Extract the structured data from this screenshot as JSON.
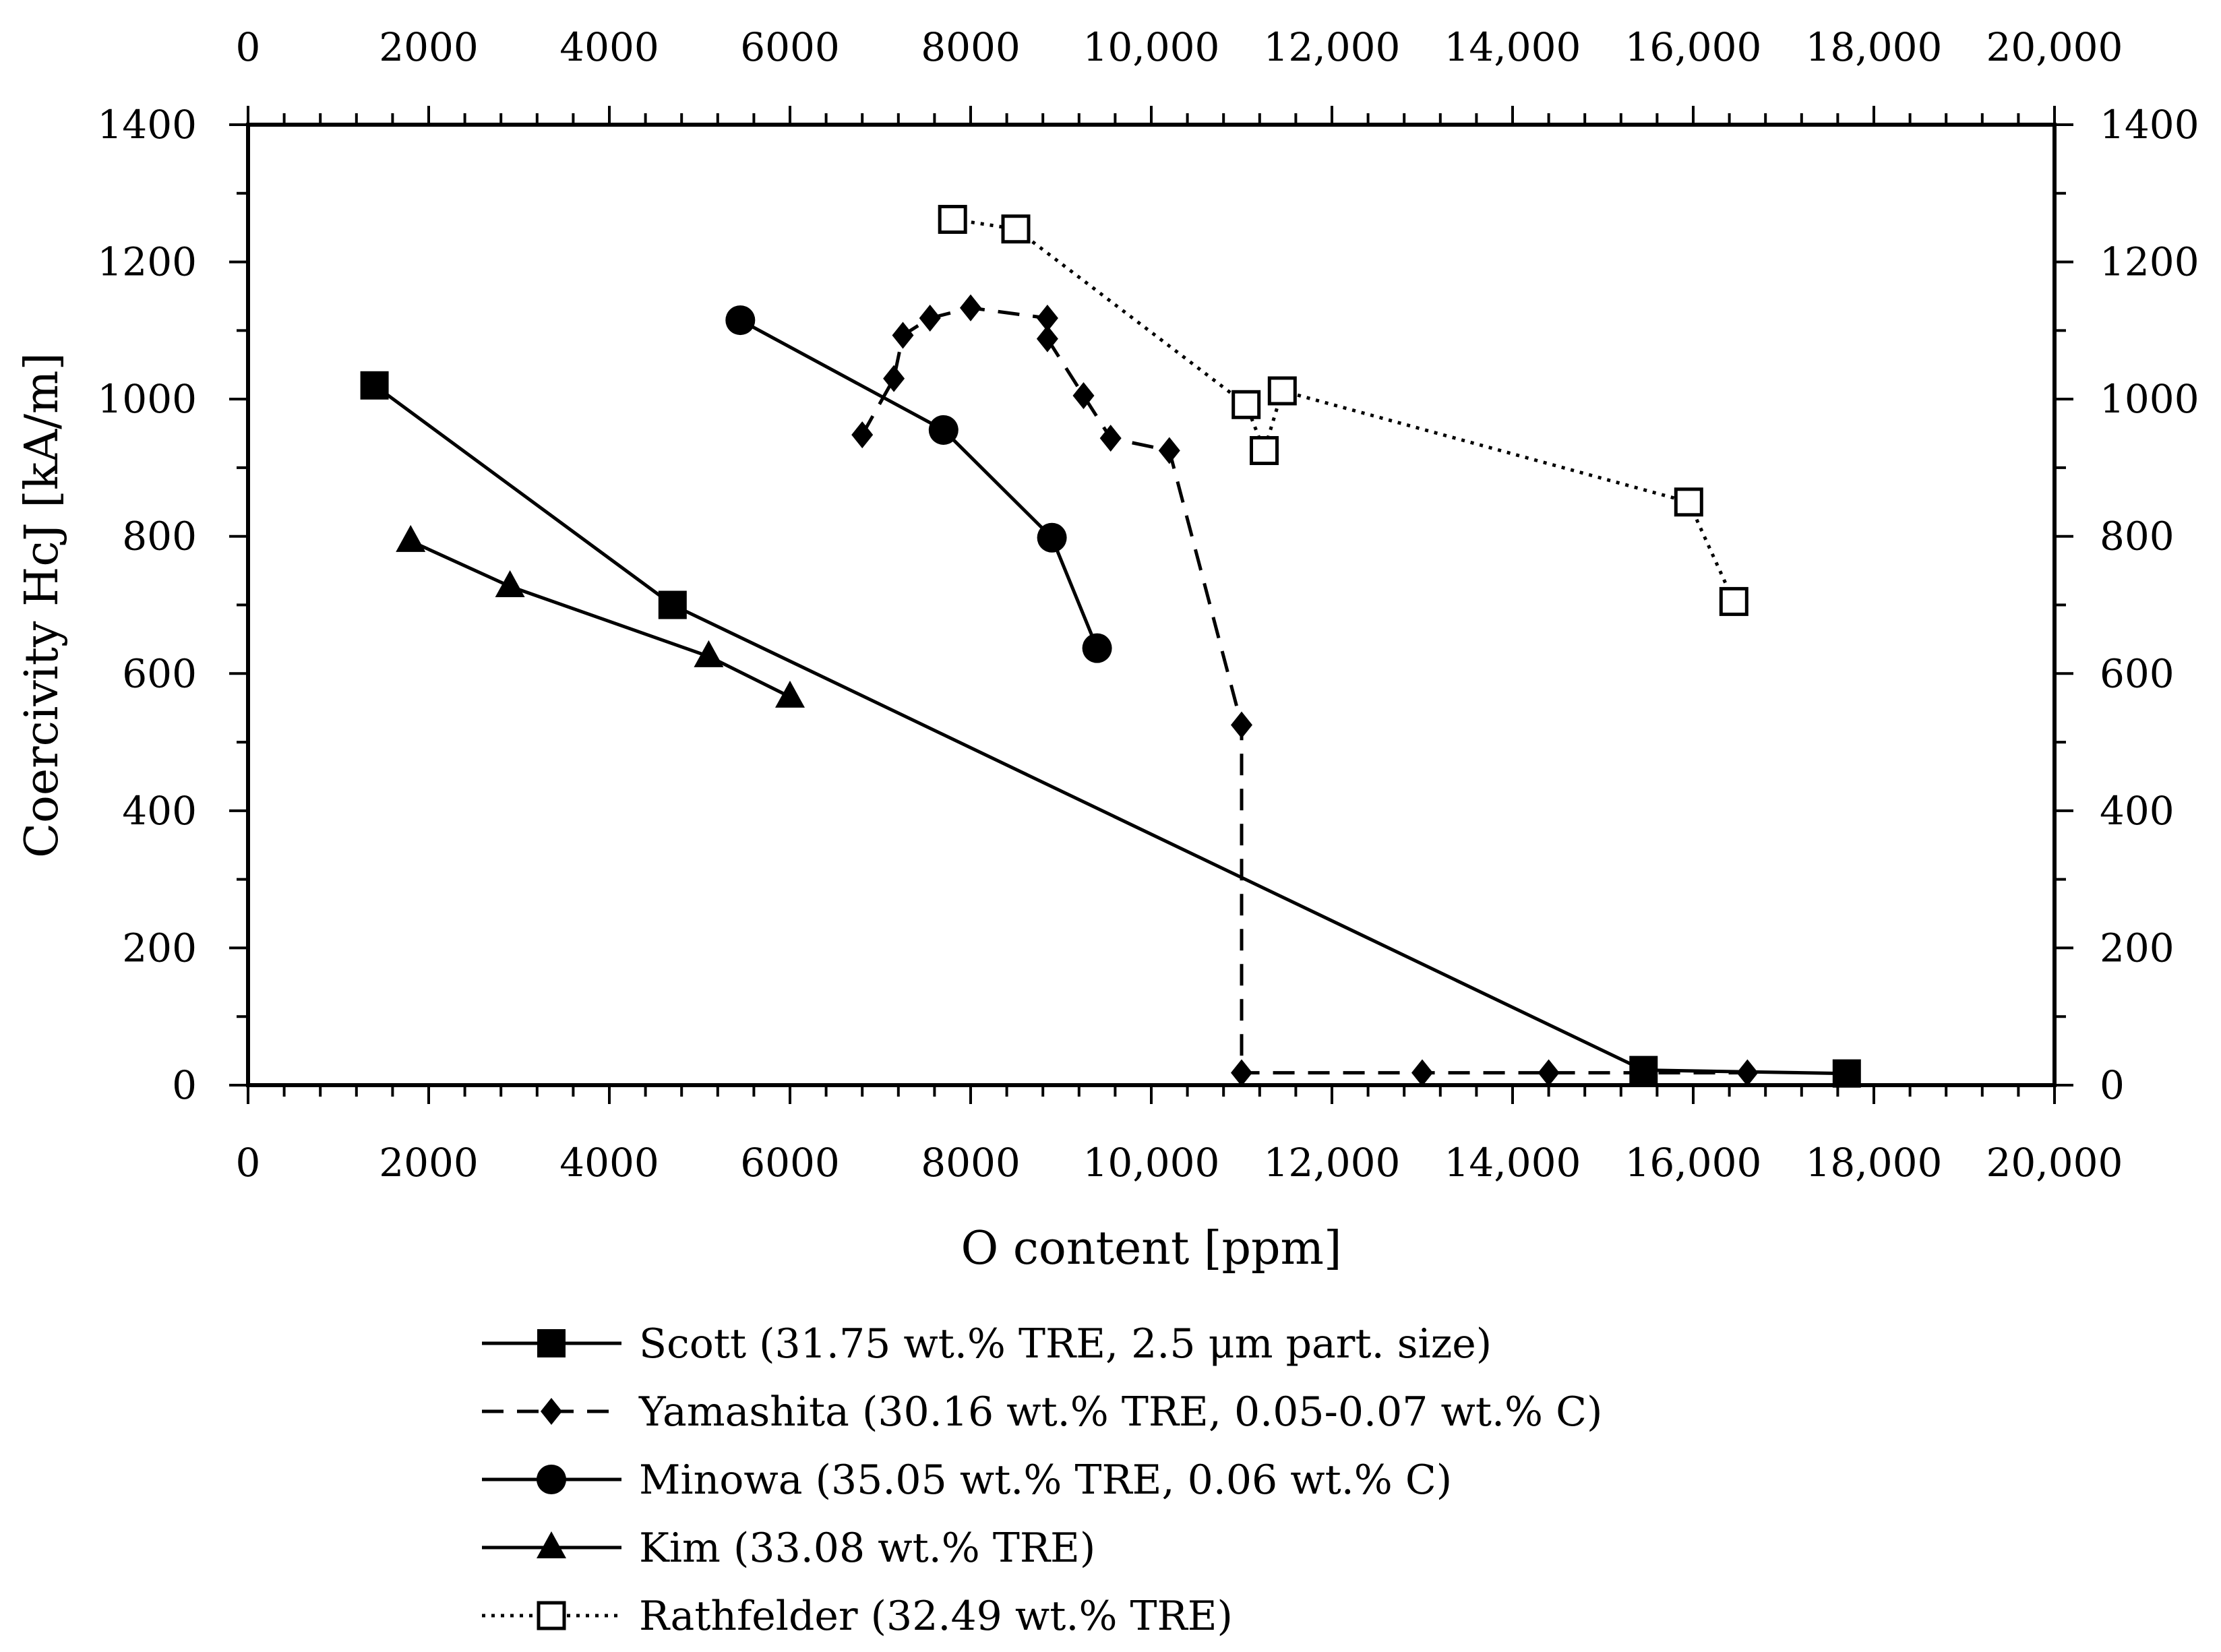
{
  "chart_data": {
    "type": "line",
    "title": "",
    "xlabel": "O content [ppm]",
    "ylabel": "Coercivity HcJ [kA/m]",
    "xlim": [
      0,
      20000
    ],
    "ylim": [
      0,
      1400
    ],
    "x_ticks": [
      0,
      2000,
      4000,
      6000,
      8000,
      10000,
      12000,
      14000,
      16000,
      18000,
      20000
    ],
    "x_tick_labels": [
      "0",
      "2000",
      "4000",
      "6000",
      "8000",
      "10,000",
      "12,000",
      "14,000",
      "16,000",
      "18,000",
      "20,000"
    ],
    "y_ticks": [
      0,
      200,
      400,
      600,
      800,
      1000,
      1200,
      1400
    ],
    "y_tick_labels": [
      "0",
      "200",
      "400",
      "600",
      "800",
      "1000",
      "1200",
      "1400"
    ],
    "legend_position": "bottom",
    "grid": false,
    "series": [
      {
        "name": "Scott (31.75 wt.% TRE, 2.5 μm part. size)",
        "marker": "square-filled",
        "line": "solid",
        "x": [
          1400,
          4700,
          15450,
          17700
        ],
        "y": [
          1020,
          700,
          22,
          17
        ]
      },
      {
        "name": "Yamashita (30.16 wt.% TRE, 0.05-0.07 wt.% C)",
        "marker": "diamond-filled",
        "line": "dashed",
        "x": [
          6800,
          7150,
          7250,
          7550,
          8000,
          8850,
          8850,
          9250,
          9550,
          10200,
          11000,
          11000,
          13000,
          14400,
          16600
        ],
        "y": [
          948,
          1030,
          1093,
          1118,
          1133,
          1118,
          1088,
          1005,
          943,
          925,
          525,
          18,
          18,
          18,
          18
        ]
      },
      {
        "name": "Minowa (35.05 wt.% TRE, 0.06 wt.% C)",
        "marker": "circle-filled",
        "line": "solid",
        "x": [
          5450,
          7700,
          8900,
          9400
        ],
        "y": [
          1115,
          955,
          798,
          637
        ]
      },
      {
        "name": "Kim (33.08 wt.% TRE)",
        "marker": "triangle-filled",
        "line": "solid",
        "x": [
          1800,
          2900,
          5100,
          6000
        ],
        "y": [
          793,
          727,
          625,
          566
        ]
      },
      {
        "name": "Rathfelder (32.49 wt.% TRE)",
        "marker": "square-open",
        "line": "dotted",
        "x": [
          7800,
          8500,
          11050,
          11250,
          11450,
          15950,
          16450
        ],
        "y": [
          1262,
          1248,
          992,
          925,
          1012,
          850,
          705
        ]
      }
    ]
  }
}
